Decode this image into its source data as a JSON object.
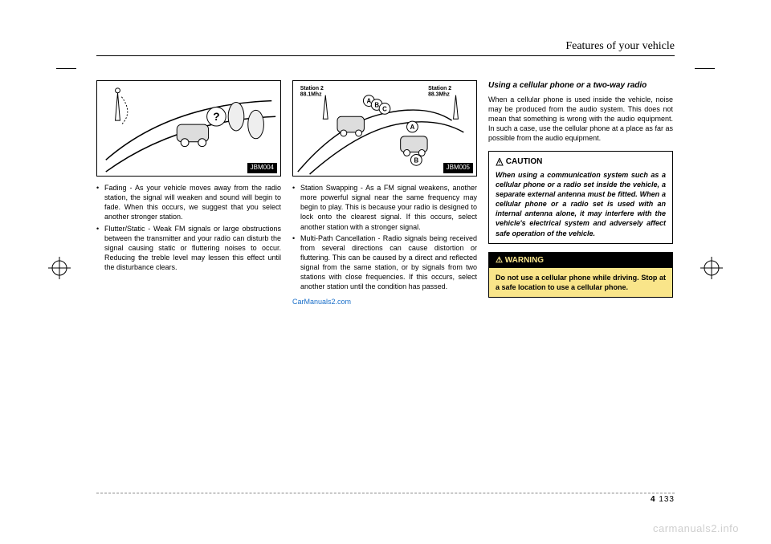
{
  "header": {
    "title": "Features of your vehicle"
  },
  "col1": {
    "figure_code": "JBM004",
    "bullets": [
      "Fading - As your vehicle moves away from the radio station, the signal will weaken and sound will begin to fade. When this occurs, we suggest that you select another stronger station.",
      "Flutter/Static - Weak FM signals or large obstructions between the transmitter and your radio can disturb the signal causing static or fluttering noises to occur. Reducing the treble level may lessen this effect until the disturbance clears."
    ],
    "fig_labels": {
      "q": "?"
    }
  },
  "col2": {
    "figure_code": "JBM005",
    "fig_labels": {
      "st1a": "Station 2",
      "st1b": "88.1Mhz",
      "st2a": "Station 2",
      "st2b": "88.3Mhz",
      "a": "A",
      "b": "B",
      "c": "C"
    },
    "bullets": [
      "Station Swapping - As a FM signal weakens, another more powerful signal near the same frequency may begin to play. This is because your radio is designed to lock onto the clearest signal. If this occurs, select another station with a stronger signal.",
      "Multi-Path Cancellation - Radio signals being received from several directions can cause distortion or fluttering. This can be caused by a direct and reflected signal from the same station, or by signals from two stations with close frequencies. If this occurs, select another station until the condition has passed."
    ],
    "link": "CarManuals2.com"
  },
  "col3": {
    "subhead": "Using a cellular phone or a two-way radio",
    "para": "When a cellular phone is used inside the vehicle, noise may be produced from the audio system. This does not mean that something is wrong with the audio equipment. In such a case, use the cellular phone at a place as far as possible from the audio equipment.",
    "caution": {
      "title": "CAUTION",
      "icon": "�position",
      "body": "When using a communication system such as a cellular phone or a radio set inside the vehicle, a separate external antenna must be fitted. When a cellular phone or a radio set is used with an internal antenna alone, it may interfere with the vehicle's electrical system and adversely affect safe operation of the vehicle."
    },
    "warning": {
      "title": "WARNING",
      "body": "Do not use a cellular phone while driving. Stop at a safe location to use a cellular phone."
    }
  },
  "footer": {
    "chapter": "4",
    "page": "133"
  },
  "watermark": "carmanuals2.info",
  "colors": {
    "warning_bg": "#f9e58a",
    "link": "#1a6fc9",
    "watermark": "#cfcfcf"
  }
}
